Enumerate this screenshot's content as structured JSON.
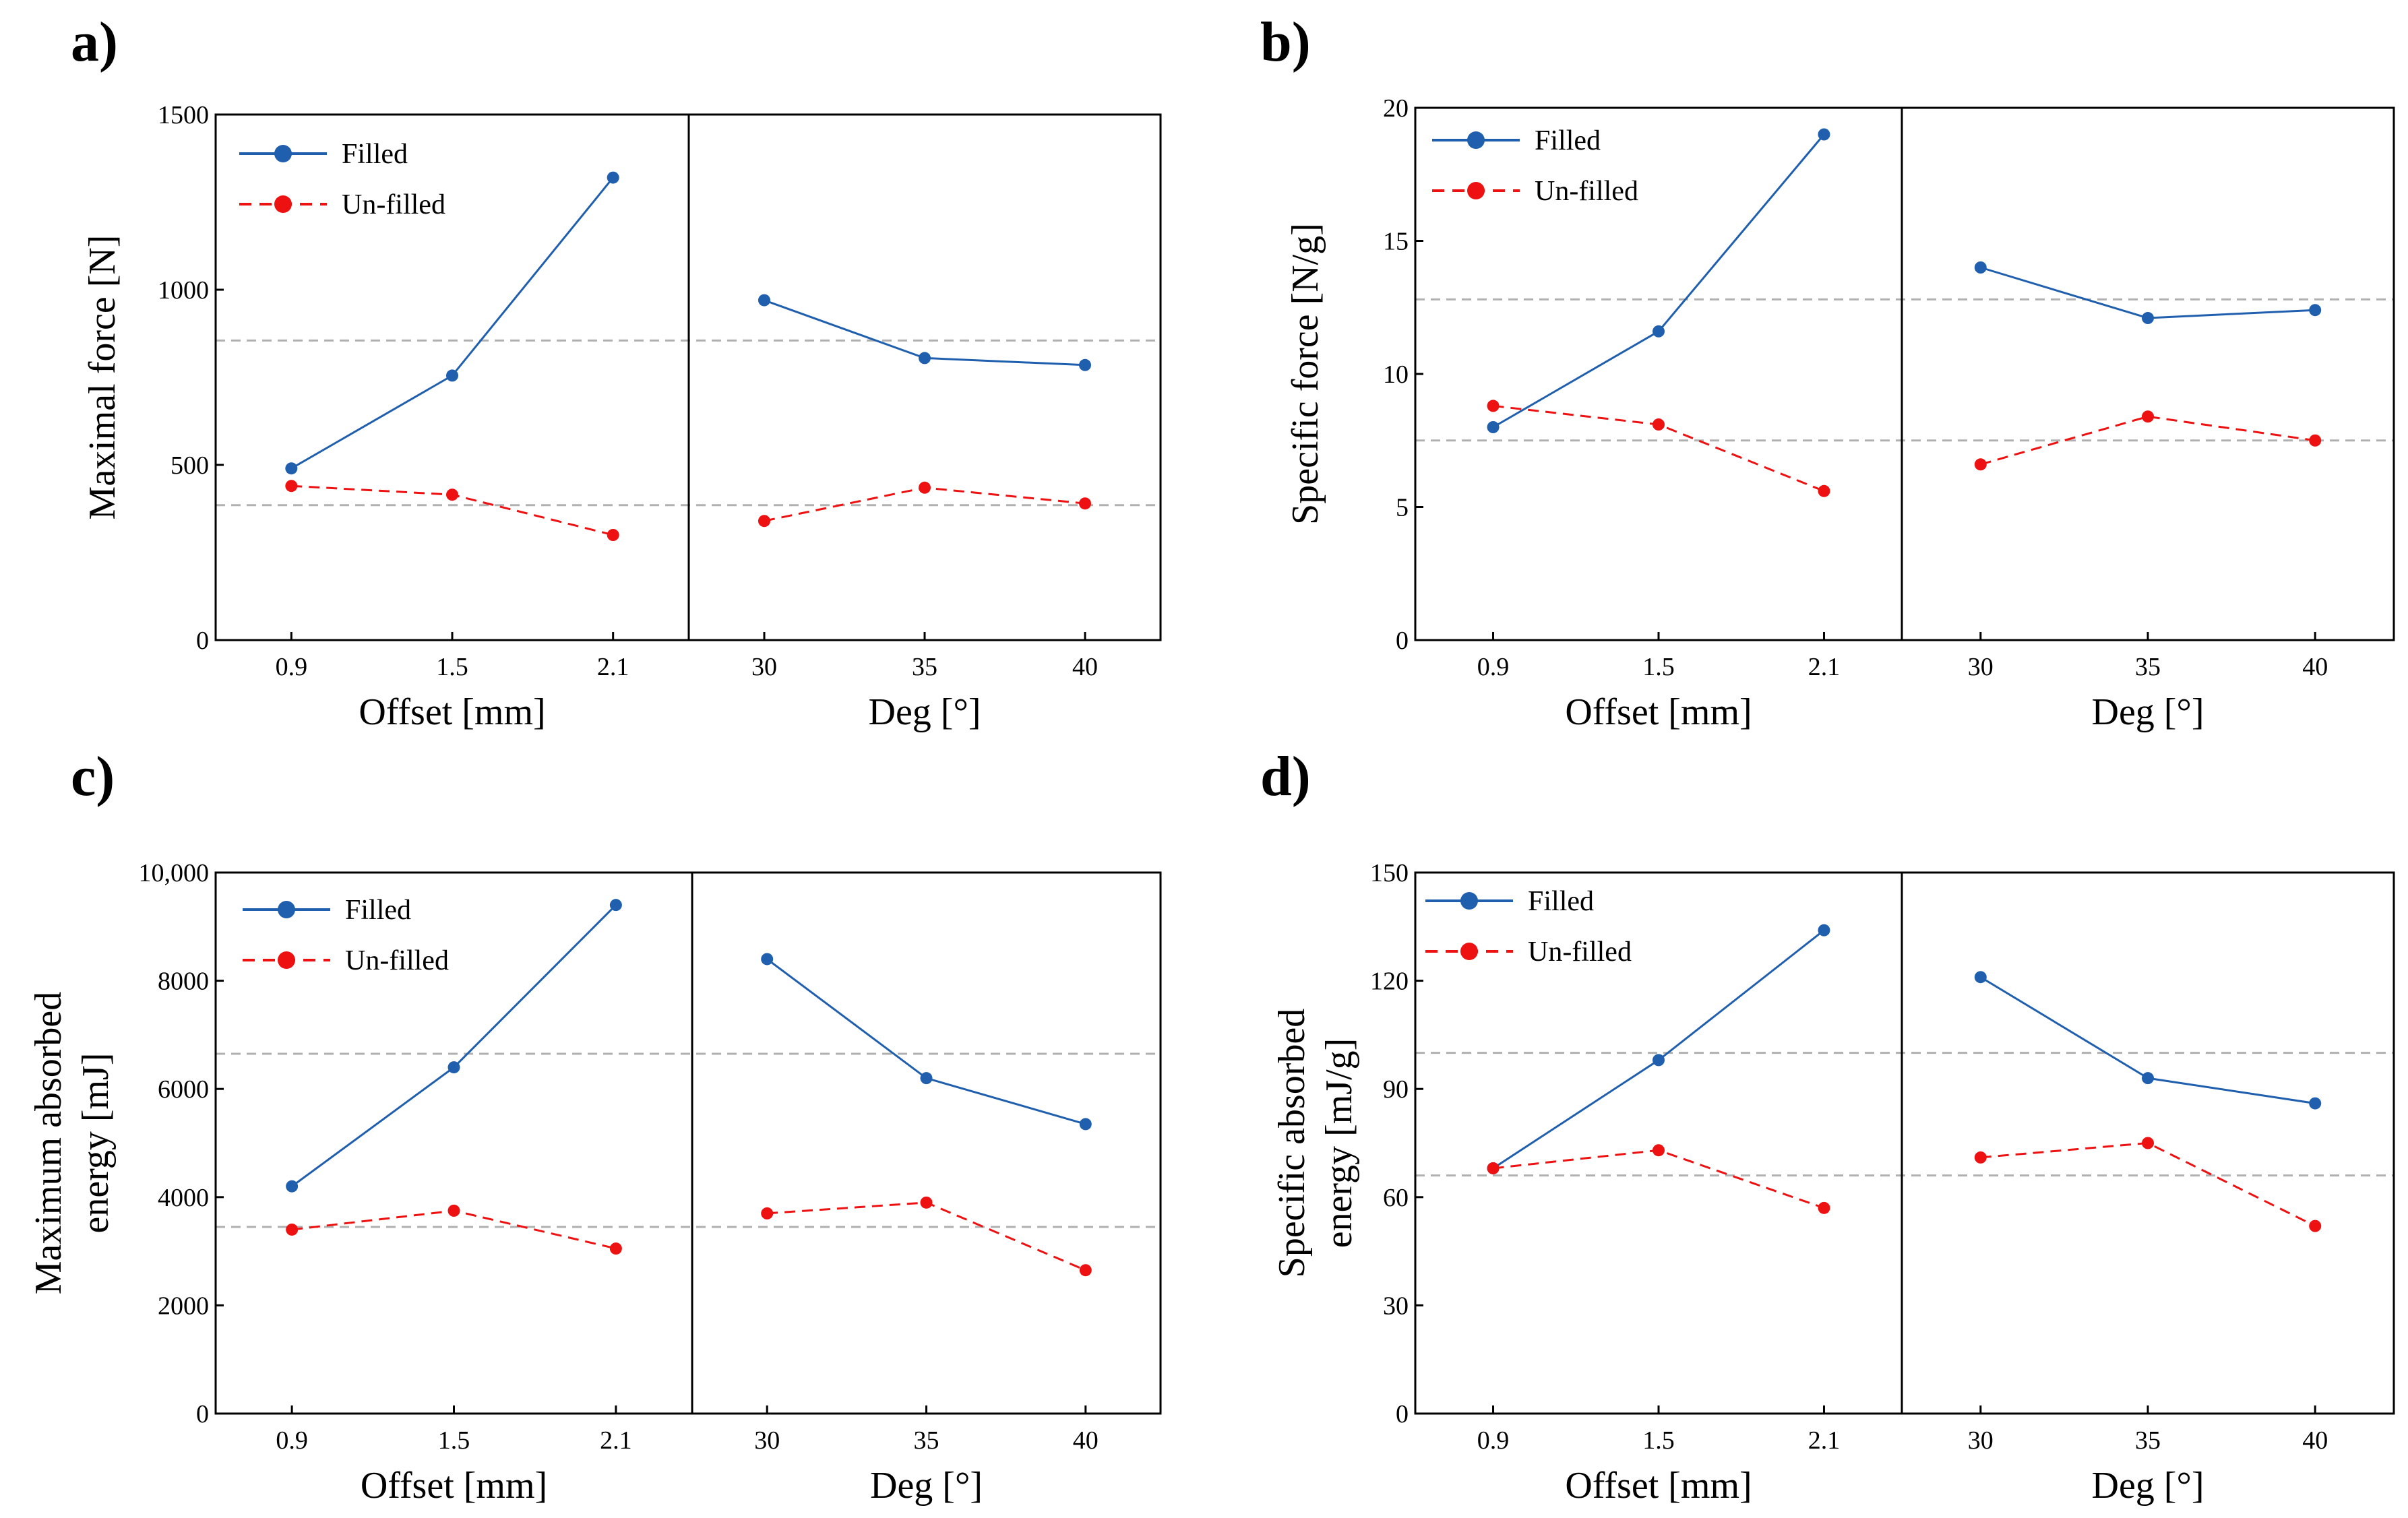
{
  "colors": {
    "filled": "#1f5fae",
    "unfilled": "#ee1111",
    "mean_line": "#b0b0b0",
    "axis": "#000000"
  },
  "chart_data": [
    {
      "label": "a)",
      "type": "line",
      "ylabel_lines": [
        "Maximal force [N]"
      ],
      "ylim": [
        0,
        1500
      ],
      "yticks": [
        0,
        500,
        1000,
        1500
      ],
      "ytick_labels": [
        "0",
        "500",
        "1000",
        "1500"
      ],
      "left": {
        "xlabel": "Offset [mm]",
        "categories": [
          "0.9",
          "1.5",
          "2.1"
        ]
      },
      "right": {
        "xlabel": "Deg [°]",
        "categories": [
          "30",
          "35",
          "40"
        ]
      },
      "mean_lines": [
        855,
        385
      ],
      "series": [
        {
          "name": "Filled",
          "key": "filled",
          "dash": false,
          "values": [
            490,
            755,
            1320,
            970,
            805,
            785
          ]
        },
        {
          "name": "Un-filled",
          "key": "unfilled",
          "dash": true,
          "values": [
            440,
            415,
            300,
            340,
            435,
            390
          ]
        }
      ]
    },
    {
      "label": "b)",
      "type": "line",
      "ylabel_lines": [
        "Specific force [N/g]"
      ],
      "ylim": [
        0,
        20
      ],
      "yticks": [
        0,
        5,
        10,
        15,
        20
      ],
      "ytick_labels": [
        "0",
        "5",
        "10",
        "15",
        "20"
      ],
      "left": {
        "xlabel": "Offset [mm]",
        "categories": [
          "0.9",
          "1.5",
          "2.1"
        ]
      },
      "right": {
        "xlabel": "Deg [°]",
        "categories": [
          "30",
          "35",
          "40"
        ]
      },
      "mean_lines": [
        12.8,
        7.5
      ],
      "series": [
        {
          "name": "Filled",
          "key": "filled",
          "dash": false,
          "values": [
            8.0,
            11.6,
            19.0,
            14.0,
            12.1,
            12.4
          ]
        },
        {
          "name": "Un-filled",
          "key": "unfilled",
          "dash": true,
          "values": [
            8.8,
            8.1,
            5.6,
            6.6,
            8.4,
            7.5
          ]
        }
      ]
    },
    {
      "label": "c)",
      "type": "line",
      "ylabel_lines": [
        "Maximum absorbed",
        "energy [mJ]"
      ],
      "ylim": [
        0,
        10000
      ],
      "yticks": [
        0,
        2000,
        4000,
        6000,
        8000,
        10000
      ],
      "ytick_labels": [
        "0",
        "2000",
        "4000",
        "6000",
        "8000",
        "10,000"
      ],
      "left": {
        "xlabel": "Offset [mm]",
        "categories": [
          "0.9",
          "1.5",
          "2.1"
        ]
      },
      "right": {
        "xlabel": "Deg [°]",
        "categories": [
          "30",
          "35",
          "40"
        ]
      },
      "mean_lines": [
        6650,
        3450
      ],
      "series": [
        {
          "name": "Filled",
          "key": "filled",
          "dash": false,
          "values": [
            4200,
            6400,
            9400,
            8400,
            6200,
            5350
          ]
        },
        {
          "name": "Un-filled",
          "key": "unfilled",
          "dash": true,
          "values": [
            3400,
            3750,
            3050,
            3700,
            3900,
            2650
          ]
        }
      ]
    },
    {
      "label": "d)",
      "type": "line",
      "ylabel_lines": [
        "Specific absorbed",
        "energy [mJ/g]"
      ],
      "ylim": [
        0,
        150
      ],
      "yticks": [
        0,
        30,
        60,
        90,
        120,
        150
      ],
      "ytick_labels": [
        "0",
        "30",
        "60",
        "90",
        "120",
        "150"
      ],
      "left": {
        "xlabel": "Offset [mm]",
        "categories": [
          "0.9",
          "1.5",
          "2.1"
        ]
      },
      "right": {
        "xlabel": "Deg [°]",
        "categories": [
          "30",
          "35",
          "40"
        ]
      },
      "mean_lines": [
        100,
        66
      ],
      "series": [
        {
          "name": "Filled",
          "key": "filled",
          "dash": false,
          "values": [
            68,
            98,
            134,
            121,
            93,
            86
          ]
        },
        {
          "name": "Un-filled",
          "key": "unfilled",
          "dash": true,
          "values": [
            68,
            73,
            57,
            71,
            75,
            52
          ]
        }
      ]
    }
  ]
}
